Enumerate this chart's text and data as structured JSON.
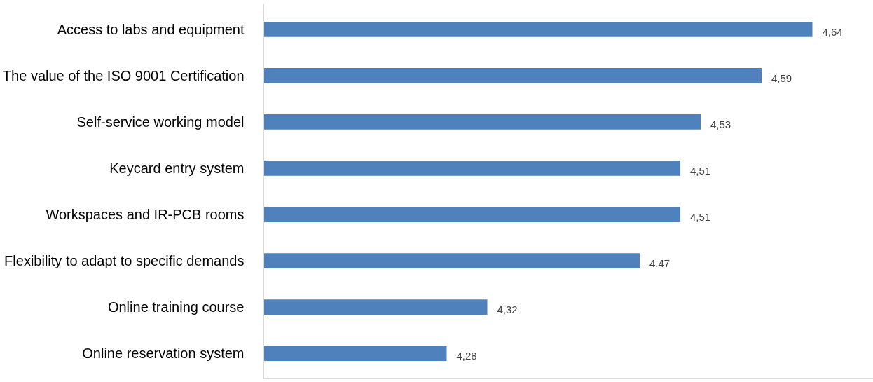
{
  "chart_data": {
    "type": "bar",
    "orientation": "horizontal",
    "categories": [
      "Access to labs and equipment",
      "The value of the ISO 9001 Certification",
      "Self-service working model",
      "Keycard entry system",
      "Workspaces and IR-PCB rooms",
      "Flexibility to adapt to specific demands",
      "Online training course",
      "Online reservation system"
    ],
    "values": [
      4.64,
      4.59,
      4.53,
      4.51,
      4.51,
      4.47,
      4.32,
      4.28
    ],
    "value_labels": [
      "4,64",
      "4,59",
      "4,53",
      "4,51",
      "4,51",
      "4,47",
      "4,32",
      "4,28"
    ],
    "color": "#4f81bd",
    "xlim": [
      4.1,
      4.7
    ],
    "grid": false,
    "tick_labels": "y"
  }
}
